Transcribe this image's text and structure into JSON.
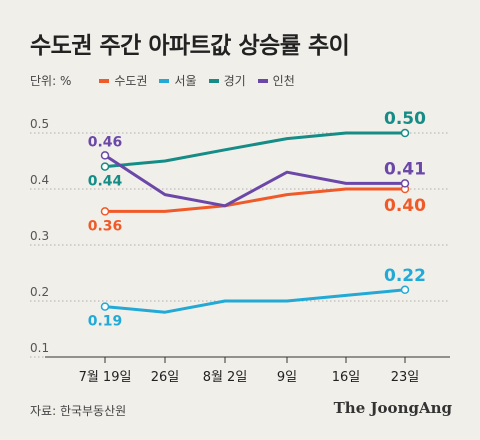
{
  "title": "수도권 주간 아파트값 상승률 추이",
  "legend": {
    "unit": "단위: %",
    "items": [
      {
        "label": "수도권",
        "color": "#f05a28"
      },
      {
        "label": "서울",
        "color": "#22a9d6"
      },
      {
        "label": "경기",
        "color": "#168c86"
      },
      {
        "label": "인천",
        "color": "#6b48a8"
      }
    ]
  },
  "source": "자료: 한국부동산원",
  "brand": "The JoongAng",
  "chart_data": {
    "type": "line",
    "title": "수도권 주간 아파트값 상승률 추이",
    "ylabel": "단위: %",
    "categories": [
      "7월 19일",
      "26일",
      "8월 2일",
      "9일",
      "16일",
      "23일"
    ],
    "ylim": [
      0.1,
      0.5
    ],
    "yticks": [
      0.1,
      0.2,
      0.3,
      0.4,
      0.5
    ],
    "grid": true,
    "legend": "top",
    "series": [
      {
        "name": "수도권",
        "color": "#f05a28",
        "values": [
          0.36,
          0.36,
          0.37,
          0.39,
          0.4,
          0.4
        ],
        "labels": [
          {
            "index": 0,
            "text": "0.36",
            "pos": "below"
          },
          {
            "index": 5,
            "text": "0.40",
            "pos": "below"
          }
        ]
      },
      {
        "name": "서울",
        "color": "#22a9d6",
        "values": [
          0.19,
          0.18,
          0.2,
          0.2,
          0.21,
          0.22
        ],
        "labels": [
          {
            "index": 0,
            "text": "0.19",
            "pos": "below"
          },
          {
            "index": 5,
            "text": "0.22",
            "pos": "above"
          }
        ]
      },
      {
        "name": "경기",
        "color": "#168c86",
        "values": [
          0.44,
          0.45,
          0.47,
          0.49,
          0.5,
          0.5
        ],
        "labels": [
          {
            "index": 0,
            "text": "0.44",
            "pos": "below"
          },
          {
            "index": 5,
            "text": "0.50",
            "pos": "above"
          }
        ]
      },
      {
        "name": "인천",
        "color": "#6b48a8",
        "values": [
          0.46,
          0.39,
          0.37,
          0.43,
          0.41,
          0.41
        ],
        "labels": [
          {
            "index": 0,
            "text": "0.46",
            "pos": "above"
          },
          {
            "index": 5,
            "text": "0.41",
            "pos": "above"
          }
        ]
      }
    ]
  }
}
